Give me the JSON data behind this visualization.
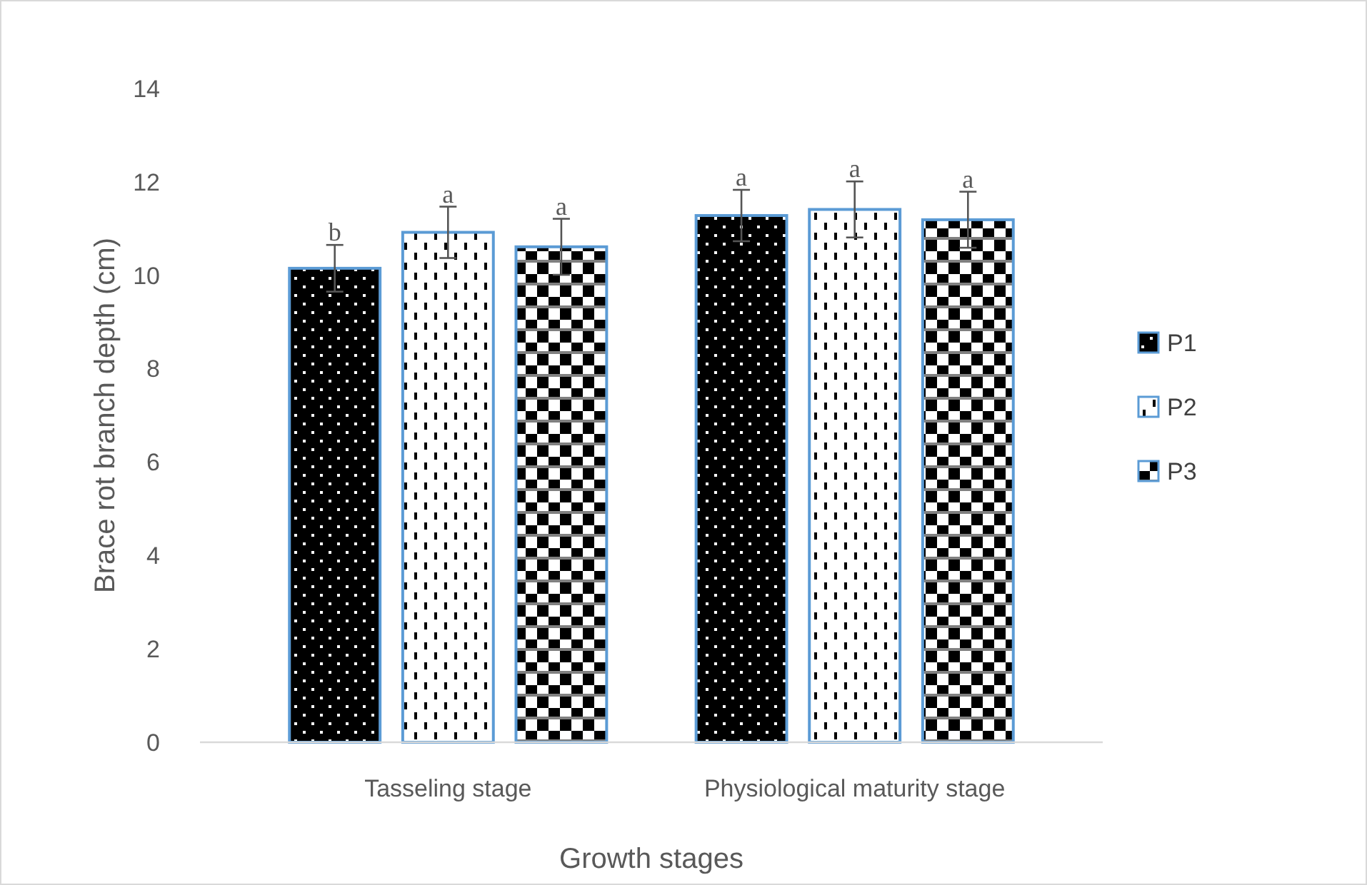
{
  "chart_data": {
    "type": "bar",
    "xlabel": "Growth stages",
    "ylabel": "Brace rot branch depth (cm)",
    "categories": [
      "Tasseling stage",
      "Physiological maturity stage"
    ],
    "series": [
      {
        "name": "P1",
        "color": "#5b9bd5",
        "values": [
          10.15,
          11.28
        ],
        "errors": [
          0.5,
          0.55
        ],
        "value_labels": [
          "b",
          "a"
        ]
      },
      {
        "name": "P2",
        "color": "#5b9bd5",
        "values": [
          10.92,
          11.41
        ],
        "errors": [
          0.55,
          0.6
        ],
        "value_labels": [
          "a",
          "a"
        ]
      },
      {
        "name": "P3",
        "color": "#5b9bd5",
        "values": [
          10.61,
          11.19
        ],
        "errors": [
          0.6,
          0.6
        ],
        "value_labels": [
          "a",
          "a"
        ]
      }
    ],
    "ylim": [
      0,
      14
    ],
    "yticks": [
      0,
      2,
      4,
      6,
      8,
      10,
      12,
      14
    ],
    "grid": false,
    "legend": "right"
  }
}
